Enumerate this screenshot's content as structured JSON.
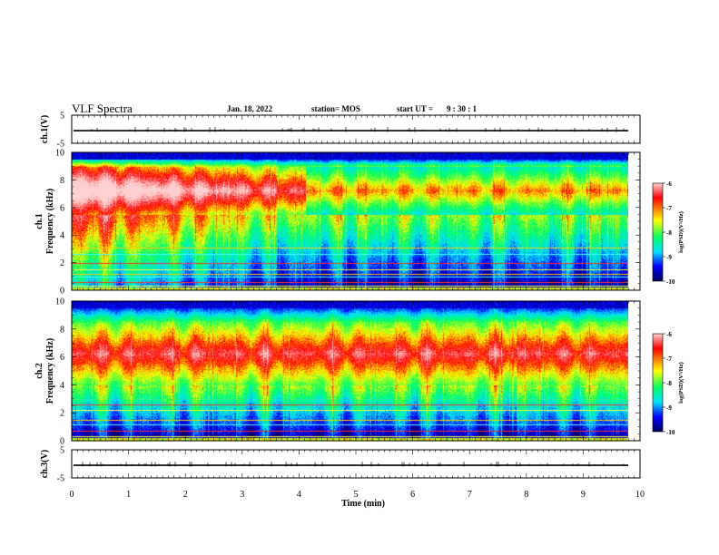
{
  "header": {
    "title": "VLF Spectra",
    "date": "Jan. 18, 2022",
    "station": "station= MOS",
    "start_label": "start  UT =",
    "start_time": "9 : 30 : 1"
  },
  "chart_data": [
    {
      "type": "line",
      "name": "ch1-waveform",
      "ylabel": "ch.1(V)",
      "ylim": [
        -5,
        5
      ],
      "yticks": [
        "5",
        "-5"
      ],
      "baseline": -0.5,
      "xlim": [
        0,
        10
      ]
    },
    {
      "type": "heatmap",
      "name": "ch1-spectrogram",
      "ylabel_lines": [
        "ch.1",
        "Frequency (kHz)"
      ],
      "ylim": [
        0,
        10
      ],
      "yticks": [
        "0",
        "2",
        "4",
        "6",
        "8",
        "10"
      ],
      "xlim": [
        0,
        9.85
      ],
      "intense_band_khz": [
        5.5,
        9
      ],
      "interference_lines_khz": [
        0.3,
        0.6,
        1.0,
        1.2,
        1.5,
        2.0,
        2.6,
        3.1
      ],
      "colorbar": {
        "label": "log(PSD)(V²/Hz)",
        "range": [
          -10,
          -6
        ],
        "ticks": [
          "-6",
          "-7",
          "-8",
          "-9",
          "-10"
        ]
      }
    },
    {
      "type": "heatmap",
      "name": "ch2-spectrogram",
      "ylabel_lines": [
        "ch.2",
        "Frequency (kHz)"
      ],
      "ylim": [
        0,
        10
      ],
      "yticks": [
        "0",
        "2",
        "4",
        "6",
        "8",
        "10"
      ],
      "xlim": [
        0,
        9.85
      ],
      "intense_band_khz": [
        4,
        8.5
      ],
      "interference_lines_khz": [
        0.3,
        0.7,
        1.2,
        1.5,
        2.2,
        2.6
      ],
      "colorbar": {
        "label": "log(PSD)(V²/Hz)",
        "range": [
          -10,
          -6
        ],
        "ticks": [
          "-6",
          "-7",
          "-8",
          "-9",
          "-10"
        ]
      }
    },
    {
      "type": "line",
      "name": "ch3-waveform",
      "xlabel": "Time (min)",
      "ylabel": "ch.3(V)",
      "ylim": [
        -5,
        5
      ],
      "yticks": [
        "5",
        "-5"
      ],
      "baseline": -0.5,
      "xlim": [
        0,
        10
      ],
      "xticks": [
        "0",
        "1",
        "2",
        "3",
        "4",
        "5",
        "6",
        "7",
        "8",
        "9",
        "10"
      ]
    }
  ],
  "colors": {
    "scale": [
      "#000060",
      "#0000ff",
      "#00e0ff",
      "#00ff60",
      "#ffff00",
      "#ff0000",
      "#ffd0d0"
    ]
  }
}
